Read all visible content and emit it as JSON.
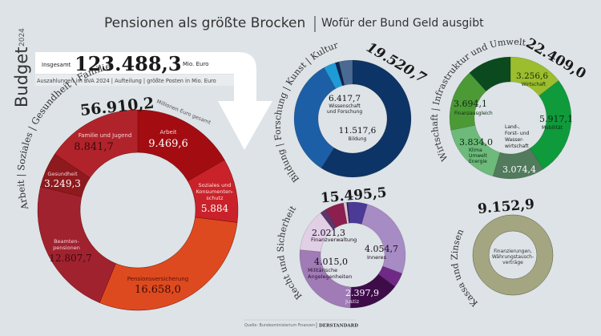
{
  "header": {
    "title": "Pensionen als größte Brocken",
    "subtitle": "Wofür der Bund Geld ausgibt",
    "side_label": "Budget",
    "side_year": "2024"
  },
  "total": {
    "label": "Insgesamt",
    "value": "123.488,3",
    "unit": "Mio. Euro",
    "note": "Auszahlungen im BVA 2024 | Aufteilung | größte Posten in Mio. Euro"
  },
  "source": {
    "text": "Quelle: Bundesministerium Finanzen",
    "brand": "DERSTANDARD"
  },
  "chart_data": [
    {
      "type": "pie",
      "donut": true,
      "id": "soziales",
      "title": "Arbeit | Soziales | Gesundheit | Familie",
      "total_label": "56.910,2",
      "total_note": "Millionen Euro gesamt",
      "colors": [
        "#a30d12",
        "#c9222a",
        "#de4a1f",
        "#a1222f",
        "#8e1a1e",
        "#b1232b"
      ],
      "slices": [
        {
          "label": "Arbeit",
          "value": 9469.6,
          "display": "9.469,6"
        },
        {
          "label": "Soziales und Konsumentenschutz",
          "value": 5884,
          "display": "5.884"
        },
        {
          "label": "Pensionsversicherung",
          "value": 16658.0,
          "display": "16.658,0"
        },
        {
          "label": "Beamtenpensionen",
          "value": 12807.7,
          "display": "12.807,7"
        },
        {
          "label": "Gesundheit",
          "value": 3249.3,
          "display": "3.249,3"
        },
        {
          "label": "Familie und Jugend",
          "value": 8841.7,
          "display": "8.841,7"
        }
      ]
    },
    {
      "type": "pie",
      "donut": true,
      "id": "bildung",
      "title": "Bildung | Forschung | Kunst | Kultur",
      "total_label": "19.520,7",
      "colors": [
        "#0d3466",
        "#1d5fa6",
        "#1e9bd7",
        "#0b2550",
        "#4a6a93"
      ],
      "slices": [
        {
          "label": "Bildung",
          "value": 11517.6,
          "display": "11.517,6"
        },
        {
          "label": "Wissenschaft und Forschung",
          "value": 6417.7,
          "display": "6.417,7"
        },
        {
          "label": "",
          "value": 650,
          "display": ""
        },
        {
          "label": "",
          "value": 200,
          "display": ""
        },
        {
          "label": "",
          "value": 735.4,
          "display": ""
        }
      ]
    },
    {
      "type": "pie",
      "donut": true,
      "id": "wirtschaft",
      "title": "Wirtschaft | Infrastruktur und Umwelt",
      "total_label": "22.409,0",
      "colors": [
        "#9cbd2e",
        "#0f9a3c",
        "#527a5c",
        "#6dba7b",
        "#4c9a36",
        "#0b4a1e"
      ],
      "slices": [
        {
          "label": "Wirtschaft",
          "value": 3256.6,
          "display": "3.256,6"
        },
        {
          "label": "Mobilität",
          "value": 5917.1,
          "display": "5.917,1"
        },
        {
          "label": "Land-, Forst- und Wasserwirtschaft",
          "value": 3074.4,
          "display": "3.074,4"
        },
        {
          "label": "Klima Umwelt Energie",
          "value": 3834.0,
          "display": "3.834,0"
        },
        {
          "label": "Finanzausgleich",
          "value": 3694.1,
          "display": "3.694,1"
        },
        {
          "label": "",
          "value": 2632.8,
          "display": ""
        }
      ]
    },
    {
      "type": "pie",
      "donut": true,
      "id": "recht",
      "title": "Recht und Sicherheit",
      "total_label": "15.495,5",
      "colors": [
        "#d9c3dc",
        "#3a1c4a",
        "#4b3a96",
        "#a78bc4",
        "#6f2a86",
        "#3f0c4a",
        "#a07bb6",
        "#e1cfe6",
        "#5d3569",
        "#8c1f4e"
      ],
      "slices": [
        {
          "label": "",
          "value": 150,
          "display": ""
        },
        {
          "label": "",
          "value": 60,
          "display": ""
        },
        {
          "label": "",
          "value": 920,
          "display": ""
        },
        {
          "label": "Inneres",
          "value": 4054.7,
          "display": "4.054,7"
        },
        {
          "label": "",
          "value": 700,
          "display": ""
        },
        {
          "label": "Justiz",
          "value": 2397.9,
          "display": "2.397,9"
        },
        {
          "label": "Militärische Angelegenheiten",
          "value": 4015.0,
          "display": "4.015,0"
        },
        {
          "label": "Finanzverwaltung",
          "value": 2021.3,
          "display": "2.021,3"
        },
        {
          "label": "",
          "value": 300,
          "display": ""
        },
        {
          "label": "",
          "value": 876.6,
          "display": ""
        }
      ]
    },
    {
      "type": "pie",
      "donut": true,
      "id": "kassa",
      "title": "Kassa und Zinsen",
      "total_label": "9.152,9",
      "colors": [
        "#a4a681"
      ],
      "slices": [
        {
          "label": "Finanzierungen, Währungstauschverträge",
          "value": 9152.9,
          "display": ""
        }
      ]
    }
  ],
  "labels": {
    "arbeit": "Arbeit",
    "soziales1": "Soziales und",
    "soziales2": "Konsumenten-",
    "soziales3": "schutz",
    "pension": "Pensionsversicherung",
    "beamten1": "Beamten-",
    "beamten2": "pensionen",
    "gesundheit": "Gesundheit",
    "familie": "Familie und Jugend",
    "wiss1": "Wissenschaft",
    "wiss2": "und Forschung",
    "bildung": "Bildung",
    "wirtschaft": "Wirtschaft",
    "mobil": "Mobilität",
    "land1": "Land-,",
    "land2": "Forst- und",
    "land3": "Wasser-",
    "land4": "wirtschaft",
    "klima1": "Klima",
    "klima2": "Umwelt",
    "klima3": "Energie",
    "finanzausgleich": "Finanzausgleich",
    "finanzverw": "Finanzverwaltung",
    "inneres": "Inneres",
    "milit1": "Militärische",
    "milit2": "Angelegenheiten",
    "justiz": "Justiz",
    "kassa1": "Finanzierungen,",
    "kassa2": "Währungstausch-",
    "kassa3": "verträge"
  }
}
